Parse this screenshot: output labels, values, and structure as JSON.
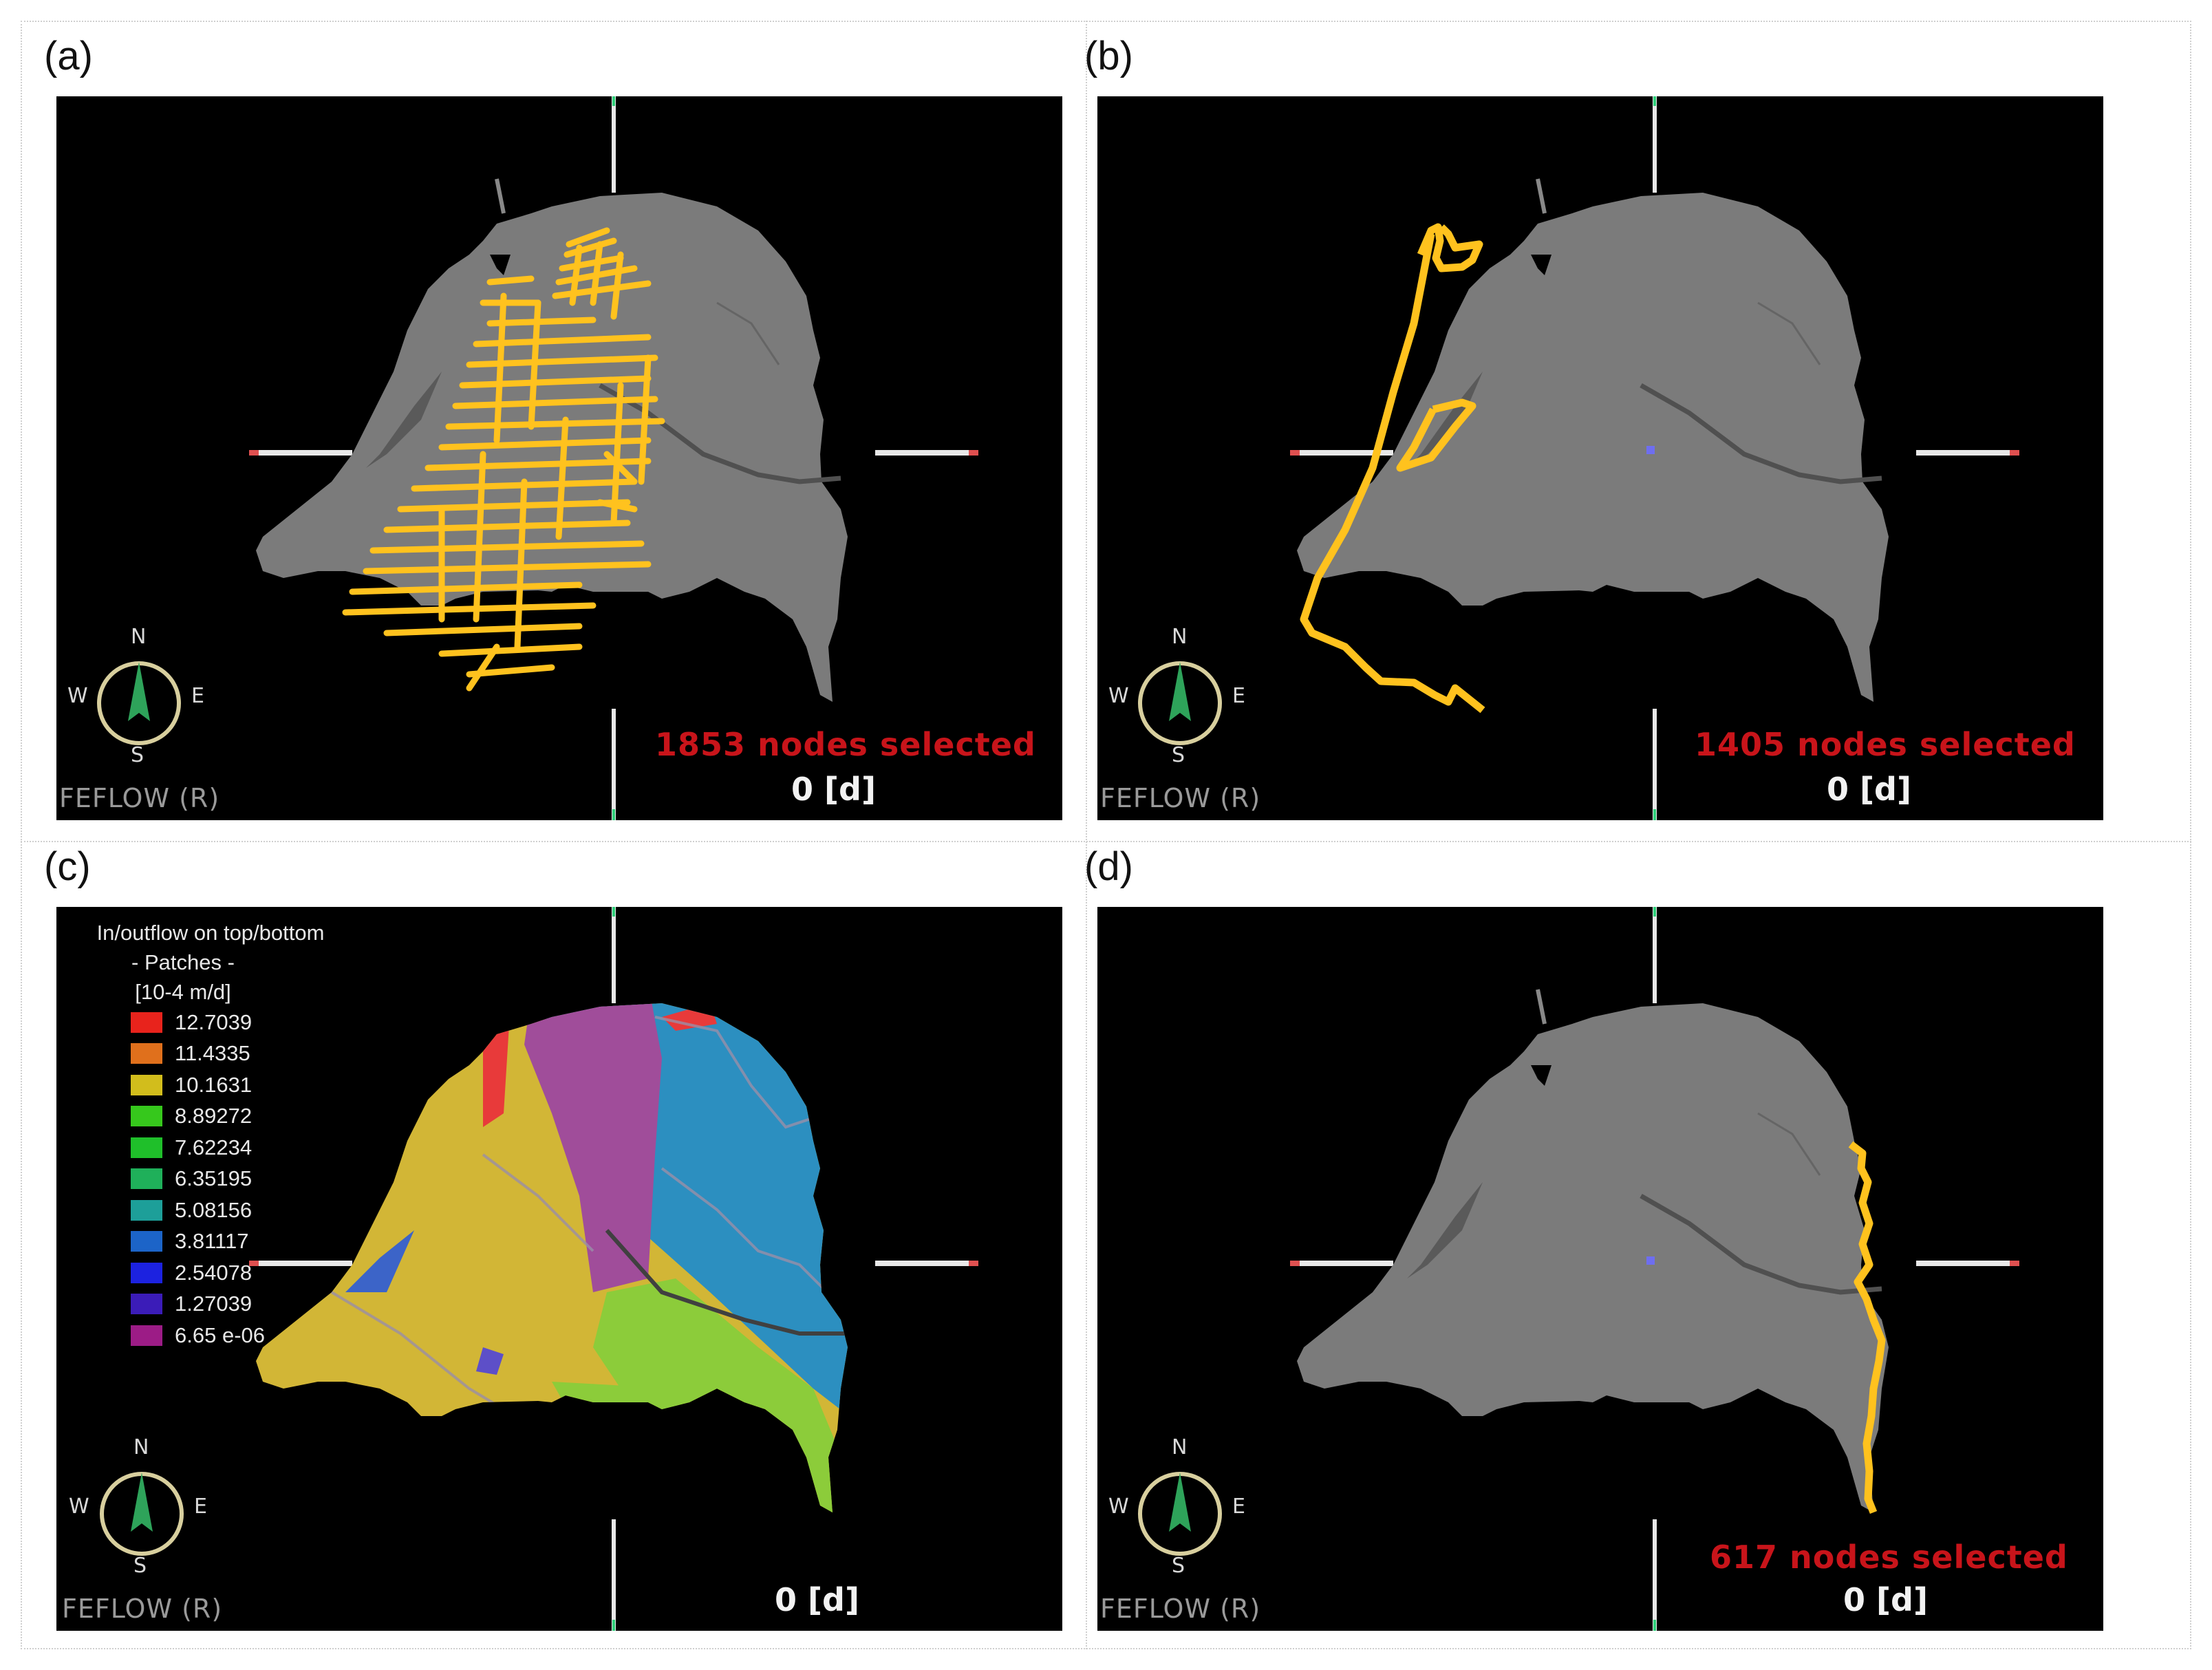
{
  "panels": [
    {
      "label": "(a)",
      "selection": "1853 nodes selected",
      "time": "0 [d]",
      "brand": "FEFLOW (R)"
    },
    {
      "label": "(b)",
      "selection": "1405 nodes selected",
      "time": "0 [d]",
      "brand": "FEFLOW (R)"
    },
    {
      "label": "(c)",
      "selection": "",
      "time": "0 [d]",
      "brand": "FEFLOW (R)"
    },
    {
      "label": "(d)",
      "selection": "617 nodes selected",
      "time": "0 [d]",
      "brand": "FEFLOW (R)"
    }
  ],
  "compass": {
    "n": "N",
    "s": "S",
    "e": "E",
    "w": "W",
    "icon": "north-arrow-compass-icon"
  },
  "legend": {
    "title": "In/outflow on top/bottom",
    "subtitle": "- Patches -",
    "unit": "[10-4 m/d]",
    "items": [
      {
        "value": "12.7039",
        "color": "#e8231c"
      },
      {
        "value": "11.4335",
        "color": "#e0701c"
      },
      {
        "value": "10.1631",
        "color": "#d2bd1c"
      },
      {
        "value": "8.89272",
        "color": "#36c81c"
      },
      {
        "value": "7.62234",
        "color": "#1fbf2a"
      },
      {
        "value": "6.35195",
        "color": "#1fb05a"
      },
      {
        "value": "5.08156",
        "color": "#1d9f99"
      },
      {
        "value": "3.81117",
        "color": "#1c64c8"
      },
      {
        "value": "2.54078",
        "color": "#1c22e0"
      },
      {
        "value": "1.27039",
        "color": "#3b1cb8"
      },
      {
        "value": "6.65 e-06",
        "color": "#9c1c86"
      }
    ]
  },
  "colors": {
    "domain": "#7a7a7a",
    "selection": "#ffc21e",
    "selection_text": "#c8141a"
  }
}
